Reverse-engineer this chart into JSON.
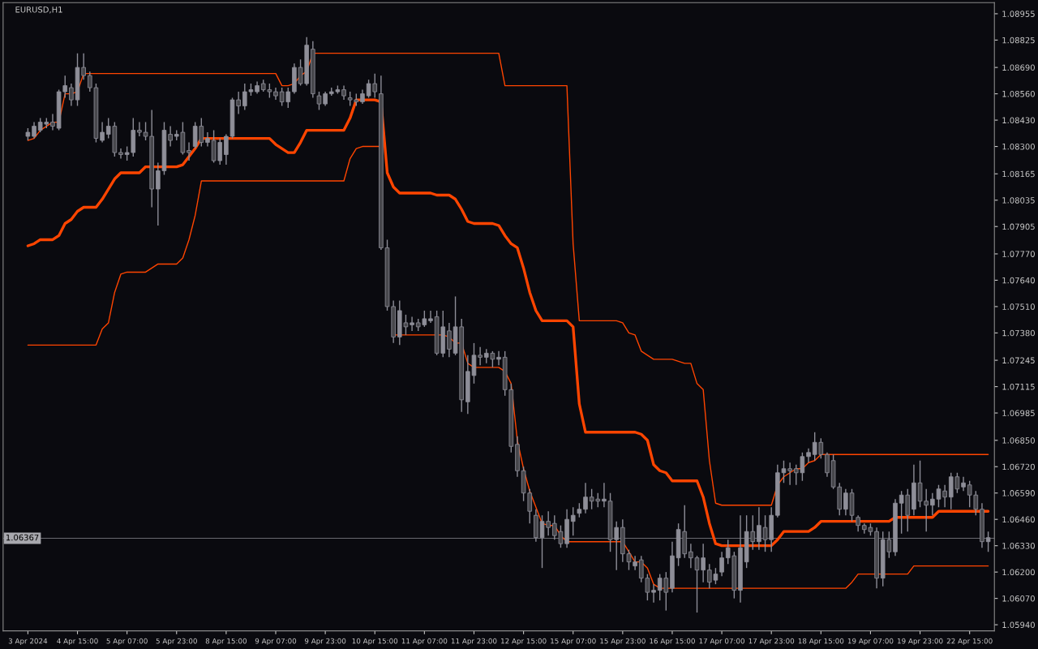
{
  "chart_data": {
    "type": "candlestick",
    "title": "EURUSD,H1",
    "color": "#8e8e98",
    "categories": [
      "3 Apr 2024",
      null,
      null,
      null,
      null,
      null,
      null,
      null,
      "4 Apr 15:00",
      null,
      null,
      null,
      null,
      null,
      null,
      null,
      "5 Apr 07:00",
      null,
      null,
      null,
      null,
      null,
      null,
      null,
      "5 Apr 23:00",
      null,
      null,
      null,
      null,
      null,
      null,
      null,
      "8 Apr 15:00",
      null,
      null,
      null,
      null,
      null,
      null,
      null,
      "9 Apr 07:00",
      null,
      null,
      null,
      null,
      null,
      null,
      null,
      "9 Apr 23:00",
      null,
      null,
      null,
      null,
      null,
      null,
      null,
      "10 Apr 15:00",
      null,
      null,
      null,
      null,
      null,
      null,
      null,
      "11 Apr 07:00",
      null,
      null,
      null,
      null,
      null,
      null,
      null,
      "11 Apr 23:00",
      null,
      null,
      null,
      null,
      null,
      null,
      null,
      "12 Apr 15:00",
      null,
      null,
      null,
      null,
      null,
      null,
      null,
      "15 Apr 07:00",
      null,
      null,
      null,
      null,
      null,
      null,
      null,
      "15 Apr 23:00",
      null,
      null,
      null,
      null,
      null,
      null,
      null,
      "16 Apr 15:00",
      null,
      null,
      null,
      null,
      null,
      null,
      null,
      "17 Apr 07:00",
      null,
      null,
      null,
      null,
      null,
      null,
      null,
      "17 Apr 23:00",
      null,
      null,
      null,
      null,
      null,
      null,
      null,
      "18 Apr 15:00",
      null,
      null,
      null,
      null,
      null,
      null,
      null,
      "19 Apr 07:00",
      null,
      null,
      null,
      null,
      null,
      null,
      null,
      "19 Apr 23:00",
      null,
      null,
      null,
      null,
      null,
      null,
      null,
      "22 Apr 15:00",
      null,
      null,
      null
    ],
    "ohlc": [
      [
        1.0835,
        1.0839,
        1.0833,
        1.0837
      ],
      [
        1.0835,
        1.0842,
        1.0834,
        1.084
      ],
      [
        1.0838,
        1.0844,
        1.0837,
        1.0842
      ],
      [
        1.0841,
        1.0844,
        1.0839,
        1.0842
      ],
      [
        1.0842,
        1.0846,
        1.0838,
        1.084
      ],
      [
        1.0839,
        1.0858,
        1.0838,
        1.0857
      ],
      [
        1.0857,
        1.0865,
        1.0854,
        1.086
      ],
      [
        1.0859,
        1.0861,
        1.085,
        1.0853
      ],
      [
        1.0853,
        1.0876,
        1.085,
        1.0869
      ],
      [
        1.0869,
        1.0876,
        1.0863,
        1.0865
      ],
      [
        1.0865,
        1.0867,
        1.0857,
        1.0859
      ],
      [
        1.0859,
        1.0861,
        1.0832,
        1.0834
      ],
      [
        1.0833,
        1.0842,
        1.0832,
        1.0837
      ],
      [
        1.0836,
        1.0844,
        1.0834,
        1.084
      ],
      [
        1.084,
        1.0842,
        1.0825,
        1.0827
      ],
      [
        1.0827,
        1.0829,
        1.0824,
        1.0826
      ],
      [
        1.0826,
        1.083,
        1.0823,
        1.0827
      ],
      [
        1.0827,
        1.0844,
        1.0825,
        1.0838
      ],
      [
        1.0838,
        1.0842,
        1.0835,
        1.0837
      ],
      [
        1.0837,
        1.0842,
        1.0833,
        1.0835
      ],
      [
        1.0835,
        1.0848,
        1.08,
        1.0809
      ],
      [
        1.0809,
        1.0822,
        1.0791,
        1.0818
      ],
      [
        1.0818,
        1.0842,
        1.0816,
        1.0838
      ],
      [
        1.0836,
        1.084,
        1.083,
        1.0833
      ],
      [
        1.0835,
        1.0838,
        1.0833,
        1.0836
      ],
      [
        1.0837,
        1.0842,
        1.0826,
        1.0827
      ],
      [
        1.0828,
        1.0832,
        1.0823,
        1.0827
      ],
      [
        1.083,
        1.0842,
        1.0829,
        1.084
      ],
      [
        1.084,
        1.0844,
        1.083,
        1.0832
      ],
      [
        1.0832,
        1.0837,
        1.083,
        1.0834
      ],
      [
        1.0833,
        1.0838,
        1.0822,
        1.0823
      ],
      [
        1.0823,
        1.0834,
        1.0821,
        1.0832
      ],
      [
        1.0826,
        1.0836,
        1.0821,
        1.0835
      ],
      [
        1.0835,
        1.0854,
        1.0834,
        1.0853
      ],
      [
        1.0853,
        1.0857,
        1.0846,
        1.085
      ],
      [
        1.085,
        1.0861,
        1.0848,
        1.0857
      ],
      [
        1.0857,
        1.0861,
        1.0855,
        1.0858
      ],
      [
        1.0857,
        1.0862,
        1.0856,
        1.086
      ],
      [
        1.0861,
        1.0863,
        1.0857,
        1.0858
      ],
      [
        1.0858,
        1.0861,
        1.0854,
        1.0857
      ],
      [
        1.0857,
        1.0859,
        1.0853,
        1.0855
      ],
      [
        1.0857,
        1.0859,
        1.085,
        1.0852
      ],
      [
        1.0852,
        1.0859,
        1.0849,
        1.0857
      ],
      [
        1.0857,
        1.0871,
        1.0856,
        1.0869
      ],
      [
        1.0869,
        1.0873,
        1.086,
        1.0861
      ],
      [
        1.0861,
        1.0884,
        1.086,
        1.088
      ],
      [
        1.0878,
        1.0882,
        1.0854,
        1.0856
      ],
      [
        1.0855,
        1.0857,
        1.0848,
        1.0851
      ],
      [
        1.0851,
        1.0857,
        1.085,
        1.0856
      ],
      [
        1.0856,
        1.0859,
        1.0855,
        1.0857
      ],
      [
        1.0857,
        1.086,
        1.0856,
        1.0858
      ],
      [
        1.0858,
        1.086,
        1.0853,
        1.0855
      ],
      [
        1.0854,
        1.0857,
        1.085,
        1.0853
      ],
      [
        1.0853,
        1.0856,
        1.085,
        1.0852
      ],
      [
        1.0852,
        1.0858,
        1.0851,
        1.0856
      ],
      [
        1.0855,
        1.0863,
        1.0854,
        1.0861
      ],
      [
        1.0861,
        1.0866,
        1.0854,
        1.0857
      ],
      [
        1.0856,
        1.0865,
        1.0779,
        1.078
      ],
      [
        1.078,
        1.0784,
        1.0749,
        1.0751
      ],
      [
        1.0751,
        1.0754,
        1.0733,
        1.0736
      ],
      [
        1.0736,
        1.0754,
        1.0732,
        1.0749
      ],
      [
        1.0743,
        1.0747,
        1.0737,
        1.0741
      ],
      [
        1.0742,
        1.0746,
        1.0739,
        1.0743
      ],
      [
        1.0743,
        1.0745,
        1.0739,
        1.0741
      ],
      [
        1.0742,
        1.0749,
        1.0741,
        1.0745
      ],
      [
        1.0744,
        1.0749,
        1.0743,
        1.0745
      ],
      [
        1.0746,
        1.0749,
        1.0727,
        1.0728
      ],
      [
        1.0728,
        1.0749,
        1.0726,
        1.0741
      ],
      [
        1.0739,
        1.0743,
        1.0726,
        1.073
      ],
      [
        1.0728,
        1.0756,
        1.0727,
        1.0741
      ],
      [
        1.0741,
        1.0745,
        1.0699,
        1.0705
      ],
      [
        1.0704,
        1.0727,
        1.0698,
        1.0719
      ],
      [
        1.0717,
        1.0733,
        1.0713,
        1.0727
      ],
      [
        1.0727,
        1.0731,
        1.0722,
        1.0726
      ],
      [
        1.0726,
        1.073,
        1.0723,
        1.0728
      ],
      [
        1.0728,
        1.0729,
        1.0721,
        1.0725
      ],
      [
        1.0725,
        1.0729,
        1.0722,
        1.0726
      ],
      [
        1.0726,
        1.0729,
        1.0707,
        1.071
      ],
      [
        1.071,
        1.0713,
        1.0679,
        1.0682
      ],
      [
        1.0683,
        1.0687,
        1.0667,
        1.067
      ],
      [
        1.067,
        1.0672,
        1.0655,
        1.0659
      ],
      [
        1.0659,
        1.0661,
        1.0644,
        1.065
      ],
      [
        1.0648,
        1.0651,
        1.0635,
        1.0637
      ],
      [
        1.0637,
        1.0648,
        1.0622,
        1.0645
      ],
      [
        1.0645,
        1.065,
        1.0638,
        1.0642
      ],
      [
        1.0644,
        1.0648,
        1.0636,
        1.0638
      ],
      [
        1.064,
        1.0643,
        1.0632,
        1.0634
      ],
      [
        1.0634,
        1.0651,
        1.0632,
        1.0646
      ],
      [
        1.0645,
        1.0652,
        1.0638,
        1.0648
      ],
      [
        1.0649,
        1.0654,
        1.0647,
        1.0651
      ],
      [
        1.0651,
        1.0664,
        1.0649,
        1.0657
      ],
      [
        1.0657,
        1.0661,
        1.0651,
        1.0655
      ],
      [
        1.0656,
        1.0659,
        1.0652,
        1.0655
      ],
      [
        1.0655,
        1.0664,
        1.0652,
        1.0656
      ],
      [
        1.0655,
        1.0659,
        1.063,
        1.0636
      ],
      [
        1.0636,
        1.0645,
        1.0621,
        1.0642
      ],
      [
        1.0642,
        1.0646,
        1.0625,
        1.0629
      ],
      [
        1.0629,
        1.0631,
        1.0621,
        1.0625
      ],
      [
        1.0623,
        1.0628,
        1.0621,
        1.0625
      ],
      [
        1.0626,
        1.0628,
        1.0615,
        1.0617
      ],
      [
        1.0617,
        1.0619,
        1.0606,
        1.061
      ],
      [
        1.061,
        1.0614,
        1.0605,
        1.0611
      ],
      [
        1.0611,
        1.0619,
        1.0606,
        1.0617
      ],
      [
        1.0617,
        1.062,
        1.0601,
        1.061
      ],
      [
        1.0612,
        1.0635,
        1.061,
        1.0628
      ],
      [
        1.0627,
        1.0644,
        1.0623,
        1.0641
      ],
      [
        1.064,
        1.0653,
        1.0627,
        1.0629
      ],
      [
        1.063,
        1.0634,
        1.0622,
        1.0627
      ],
      [
        1.0627,
        1.0628,
        1.06,
        1.0621
      ],
      [
        1.0621,
        1.0634,
        1.0615,
        1.0627
      ],
      [
        1.0621,
        1.0624,
        1.0612,
        1.0615
      ],
      [
        1.0616,
        1.0622,
        1.0614,
        1.0619
      ],
      [
        1.062,
        1.063,
        1.0618,
        1.0627
      ],
      [
        1.0627,
        1.0636,
        1.0624,
        1.0632
      ],
      [
        1.0628,
        1.063,
        1.0607,
        1.0611
      ],
      [
        1.0611,
        1.0648,
        1.0605,
        1.0632
      ],
      [
        1.0625,
        1.0648,
        1.0622,
        1.064
      ],
      [
        1.064,
        1.0648,
        1.0631,
        1.0635
      ],
      [
        1.0635,
        1.0652,
        1.0631,
        1.0643
      ],
      [
        1.0642,
        1.0648,
        1.063,
        1.0636
      ],
      [
        1.0636,
        1.0652,
        1.063,
        1.0648
      ],
      [
        1.0648,
        1.0673,
        1.0647,
        1.0669
      ],
      [
        1.0669,
        1.0675,
        1.0664,
        1.0671
      ],
      [
        1.0671,
        1.0674,
        1.0663,
        1.067
      ],
      [
        1.0671,
        1.0673,
        1.0663,
        1.0669
      ],
      [
        1.0669,
        1.0679,
        1.0665,
        1.0677
      ],
      [
        1.0677,
        1.0681,
        1.0674,
        1.0679
      ],
      [
        1.0678,
        1.0689,
        1.0675,
        1.0684
      ],
      [
        1.0684,
        1.0686,
        1.0676,
        1.0678
      ],
      [
        1.0678,
        1.0679,
        1.0667,
        1.0669
      ],
      [
        1.0675,
        1.0678,
        1.0661,
        1.0662
      ],
      [
        1.0662,
        1.0664,
        1.0648,
        1.0651
      ],
      [
        1.0651,
        1.0661,
        1.0648,
        1.0659
      ],
      [
        1.0659,
        1.0661,
        1.0645,
        1.0648
      ],
      [
        1.0647,
        1.0648,
        1.064,
        1.0643
      ],
      [
        1.0643,
        1.0644,
        1.0639,
        1.0641
      ],
      [
        1.0642,
        1.0644,
        1.0638,
        1.064
      ],
      [
        1.064,
        1.0642,
        1.0612,
        1.0617
      ],
      [
        1.0617,
        1.064,
        1.0613,
        1.0636
      ],
      [
        1.0636,
        1.064,
        1.0627,
        1.063
      ],
      [
        1.063,
        1.0656,
        1.0628,
        1.0654
      ],
      [
        1.0654,
        1.066,
        1.0639,
        1.0658
      ],
      [
        1.0658,
        1.0661,
        1.064,
        1.0648
      ],
      [
        1.0651,
        1.0673,
        1.0648,
        1.0664
      ],
      [
        1.0664,
        1.0675,
        1.0652,
        1.0655
      ],
      [
        1.0655,
        1.0661,
        1.064,
        1.0653
      ],
      [
        1.0653,
        1.0659,
        1.0648,
        1.0656
      ],
      [
        1.0656,
        1.0663,
        1.0652,
        1.0661
      ],
      [
        1.066,
        1.0663,
        1.0652,
        1.0657
      ],
      [
        1.0657,
        1.0669,
        1.0651,
        1.0667
      ],
      [
        1.0667,
        1.0669,
        1.0659,
        1.0661
      ],
      [
        1.0662,
        1.0667,
        1.066,
        1.0664
      ],
      [
        1.0663,
        1.0665,
        1.0652,
        1.0658
      ],
      [
        1.0658,
        1.066,
        1.0648,
        1.0651
      ],
      [
        1.0651,
        1.0654,
        1.0632,
        1.0635
      ],
      [
        1.0635,
        1.064,
        1.063,
        1.0637
      ]
    ],
    "series": [
      {
        "type": "line",
        "color": "#ff4500",
        "values": [
          1.0833,
          1.0834,
          1.0838,
          1.084,
          1.0842,
          1.0842,
          1.0856,
          1.0856,
          1.0857,
          1.0866,
          1.0866,
          1.0866,
          1.0866,
          1.0866,
          1.0866,
          1.0866,
          1.0866,
          1.0866,
          1.0866,
          1.0866,
          1.0866,
          1.0866,
          1.0866,
          1.0866,
          1.0866,
          1.0866,
          1.0866,
          1.0866,
          1.0866,
          1.0866,
          1.0866,
          1.0866,
          1.0866,
          1.0866,
          1.0866,
          1.0866,
          1.0866,
          1.0866,
          1.0866,
          1.0866,
          1.0866,
          1.086,
          1.086,
          1.0861,
          1.0865,
          1.0867,
          1.0876,
          1.0876,
          1.0876,
          1.0876,
          1.0876,
          1.0876,
          1.0876,
          1.0876,
          1.0876,
          1.0876,
          1.0876,
          1.0876,
          1.0876,
          1.0876,
          1.0876,
          1.0876,
          1.0876,
          1.0876,
          1.0876,
          1.0876,
          1.0876,
          1.0876,
          1.0876,
          1.0876,
          1.0876,
          1.0876,
          1.0876,
          1.0876,
          1.0876,
          1.0876,
          1.0876,
          1.086,
          1.086,
          1.086,
          1.086,
          1.086,
          1.086,
          1.086,
          1.086,
          1.086,
          1.086,
          1.086,
          1.0782,
          1.0744,
          1.0744,
          1.0744,
          1.0744,
          1.0744,
          1.0744,
          1.0744,
          1.0743,
          1.0738,
          1.0737,
          1.0729,
          1.0727,
          1.0725,
          1.0725,
          1.0725,
          1.0725,
          1.0724,
          1.0723,
          1.0723,
          1.0713,
          1.071,
          1.0675,
          1.0654,
          1.0653,
          1.0653,
          1.0653,
          1.0653,
          1.0653,
          1.0653,
          1.0653,
          1.0653,
          1.0653,
          1.0663,
          1.0667,
          1.0669,
          1.0671,
          1.0671,
          1.0674,
          1.0675,
          1.0678,
          1.0678,
          1.0678,
          1.0678,
          1.0678,
          1.0678,
          1.0678,
          1.0678,
          1.0678,
          1.0678,
          1.0678,
          1.0678,
          1.0678,
          1.0678,
          1.0678,
          1.0678,
          1.0678,
          1.0678,
          1.0678,
          1.0678,
          1.0678,
          1.0678,
          1.0678,
          1.0678,
          1.0678,
          1.0678,
          1.0678,
          1.0678
        ]
      },
      {
        "type": "line",
        "color": "#ff4500",
        "values": [
          1.0781,
          1.0782,
          1.0784,
          1.0784,
          1.0784,
          1.0786,
          1.0792,
          1.0794,
          1.0798,
          1.08,
          1.08,
          1.08,
          1.0804,
          1.0809,
          1.0814,
          1.0817,
          1.0817,
          1.0817,
          1.0817,
          1.082,
          1.082,
          1.082,
          1.082,
          1.082,
          1.082,
          1.0821,
          1.0825,
          1.0829,
          1.0834,
          1.0834,
          1.0834,
          1.0834,
          1.0834,
          1.0834,
          1.0834,
          1.0834,
          1.0834,
          1.0834,
          1.0834,
          1.0834,
          1.0831,
          1.0829,
          1.0827,
          1.0827,
          1.0832,
          1.0838,
          1.0838,
          1.0838,
          1.0838,
          1.0838,
          1.0838,
          1.0838,
          1.0844,
          1.0853,
          1.0853,
          1.0853,
          1.0853,
          1.0852,
          1.0817,
          1.081,
          1.0807,
          1.0807,
          1.0807,
          1.0807,
          1.0807,
          1.0807,
          1.0806,
          1.0806,
          1.0806,
          1.0804,
          1.0799,
          1.0793,
          1.0792,
          1.0792,
          1.0792,
          1.0792,
          1.0791,
          1.0786,
          1.0782,
          1.078,
          1.077,
          1.0758,
          1.0749,
          1.0744,
          1.0744,
          1.0744,
          1.0744,
          1.0744,
          1.0741,
          1.0703,
          1.0689,
          1.0689,
          1.0689,
          1.0689,
          1.0689,
          1.0689,
          1.0689,
          1.0689,
          1.0689,
          1.0688,
          1.0685,
          1.0673,
          1.067,
          1.0669,
          1.0665,
          1.0665,
          1.0665,
          1.0665,
          1.0665,
          1.0657,
          1.0644,
          1.0634,
          1.0633,
          1.0633,
          1.0633,
          1.0633,
          1.0633,
          1.0633,
          1.0633,
          1.0633,
          1.0633,
          1.0636,
          1.064,
          1.064,
          1.064,
          1.064,
          1.064,
          1.0642,
          1.0645,
          1.0645,
          1.0645,
          1.0645,
          1.0645,
          1.0645,
          1.0645,
          1.0645,
          1.0645,
          1.0645,
          1.0645,
          1.0645,
          1.0647,
          1.0647,
          1.0647,
          1.0647,
          1.0647,
          1.0647,
          1.0647,
          1.065,
          1.065,
          1.065,
          1.065,
          1.065,
          1.065,
          1.065,
          1.065,
          1.065
        ]
      },
      {
        "type": "line",
        "color": "#ff4500",
        "values": [
          1.0732,
          1.0732,
          1.0732,
          1.0732,
          1.0732,
          1.0732,
          1.0732,
          1.0732,
          1.0732,
          1.0732,
          1.0732,
          1.0732,
          1.074,
          1.0743,
          1.0758,
          1.0767,
          1.0768,
          1.0768,
          1.0768,
          1.0768,
          1.077,
          1.0772,
          1.0772,
          1.0772,
          1.0772,
          1.0775,
          1.0784,
          1.0796,
          1.0813,
          1.0813,
          1.0813,
          1.0813,
          1.0813,
          1.0813,
          1.0813,
          1.0813,
          1.0813,
          1.0813,
          1.0813,
          1.0813,
          1.0813,
          1.0813,
          1.0813,
          1.0813,
          1.0813,
          1.0813,
          1.0813,
          1.0813,
          1.0813,
          1.0813,
          1.0813,
          1.0813,
          1.0824,
          1.0829,
          1.083,
          1.083,
          1.083,
          1.083,
          null,
          1.0737,
          1.0737,
          1.0737,
          1.0737,
          1.0737,
          1.0737,
          1.0737,
          1.0737,
          1.0737,
          1.0736,
          1.0733,
          1.0733,
          1.0723,
          1.0721,
          1.0721,
          1.0721,
          1.0721,
          1.0721,
          1.0719,
          1.0713,
          1.0685,
          1.0671,
          1.066,
          1.0652,
          1.0644,
          1.0643,
          1.0643,
          1.0638,
          1.0635,
          1.0635,
          1.0635,
          1.0635,
          1.0635,
          1.0635,
          1.0635,
          1.0635,
          1.0635,
          1.0635,
          1.063,
          1.0625,
          1.0625,
          1.0622,
          1.0614,
          1.0612,
          1.0612,
          1.0612,
          1.0612,
          1.0612,
          1.0612,
          1.0612,
          1.0612,
          1.0612,
          1.0612,
          1.0612,
          1.0612,
          1.0612,
          1.0612,
          1.0612,
          1.0612,
          1.0612,
          1.0612,
          1.0612,
          1.0612,
          1.0612,
          1.0612,
          1.0612,
          1.0612,
          1.0612,
          1.0612,
          1.0612,
          1.0612,
          1.0612,
          1.0612,
          1.0612,
          1.0615,
          1.0619,
          1.0619,
          1.0619,
          1.0619,
          1.0619,
          1.0619,
          1.0619,
          1.0619,
          1.0619,
          1.0623,
          1.0623,
          1.0623,
          1.0623,
          1.0623,
          1.0623,
          1.0623,
          1.0623,
          1.0623,
          1.0623,
          1.0623,
          1.0623,
          1.0623
        ]
      }
    ],
    "ylim": [
      1.0591,
      1.0901
    ],
    "yticks": [
      {
        "value": 1.08955,
        "label": "1.08955"
      },
      {
        "value": 1.08825,
        "label": "1.08825"
      },
      {
        "value": 1.0869,
        "label": "1.08690"
      },
      {
        "value": 1.0856,
        "label": "1.08560"
      },
      {
        "value": 1.0843,
        "label": "1.08430"
      },
      {
        "value": 1.083,
        "label": "1.08300"
      },
      {
        "value": 1.08165,
        "label": "1.08165"
      },
      {
        "value": 1.08035,
        "label": "1.08035"
      },
      {
        "value": 1.07905,
        "label": "1.07905"
      },
      {
        "value": 1.0777,
        "label": "1.07770"
      },
      {
        "value": 1.0764,
        "label": "1.07640"
      },
      {
        "value": 1.0751,
        "label": "1.07510"
      },
      {
        "value": 1.0738,
        "label": "1.07380"
      },
      {
        "value": 1.07245,
        "label": "1.07245"
      },
      {
        "value": 1.07115,
        "label": "1.07115"
      },
      {
        "value": 1.06985,
        "label": "1.06985"
      },
      {
        "value": 1.0685,
        "label": "1.06850"
      },
      {
        "value": 1.0672,
        "label": "1.06720"
      },
      {
        "value": 1.0659,
        "label": "1.06590"
      },
      {
        "value": 1.0646,
        "label": "1.06460"
      },
      {
        "value": 1.0633,
        "label": "1.06330"
      },
      {
        "value": 1.062,
        "label": "1.06200"
      },
      {
        "value": 1.0607,
        "label": "1.06070"
      },
      {
        "value": 1.0594,
        "label": "1.05940"
      }
    ],
    "ref_lines": [
      {
        "axis": "y",
        "value": 1.06367,
        "label": "1.06367",
        "color": "#6a6a70"
      }
    ]
  }
}
